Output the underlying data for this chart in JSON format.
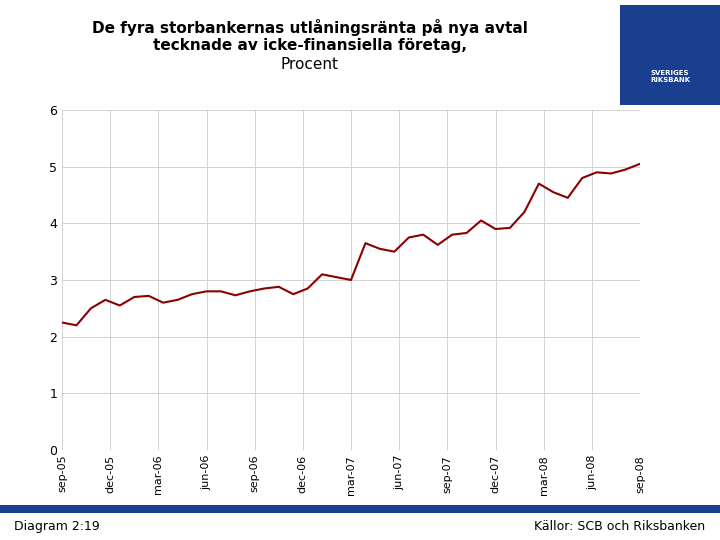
{
  "title_line1": "De fyra storbankernas utlåningsränta på nya avtal",
  "title_line2": "tecknade av icke-finansiella företag,",
  "title_line3": "Procent",
  "line_color": "#8B0000",
  "background_color": "#ffffff",
  "grid_color": "#cccccc",
  "footer_left": "Diagram 2:19",
  "footer_right": "Källor: SCB och Riksbanken",
  "footer_bar_color": "#1a3f8f",
  "logo_bg_color": "#1a3f8f",
  "ylim": [
    0,
    6
  ],
  "yticks": [
    0,
    1,
    2,
    3,
    4,
    5,
    6
  ],
  "x_labels": [
    "sep-05",
    "dec-05",
    "mar-06",
    "jun-06",
    "sep-06",
    "dec-06",
    "mar-07",
    "jun-07",
    "sep-07",
    "dec-07",
    "mar-08",
    "jun-08",
    "sep-08"
  ],
  "values": [
    2.25,
    2.2,
    2.5,
    2.65,
    2.55,
    2.7,
    2.72,
    2.6,
    2.65,
    2.75,
    2.8,
    2.8,
    2.73,
    2.8,
    2.85,
    2.88,
    2.75,
    2.85,
    3.1,
    3.05,
    3.0,
    3.65,
    3.55,
    3.5,
    3.75,
    3.8,
    3.62,
    3.8,
    3.83,
    4.05,
    3.9,
    3.92,
    4.2,
    4.7,
    4.55,
    4.45,
    4.8,
    4.9,
    4.88,
    4.95,
    5.05
  ]
}
